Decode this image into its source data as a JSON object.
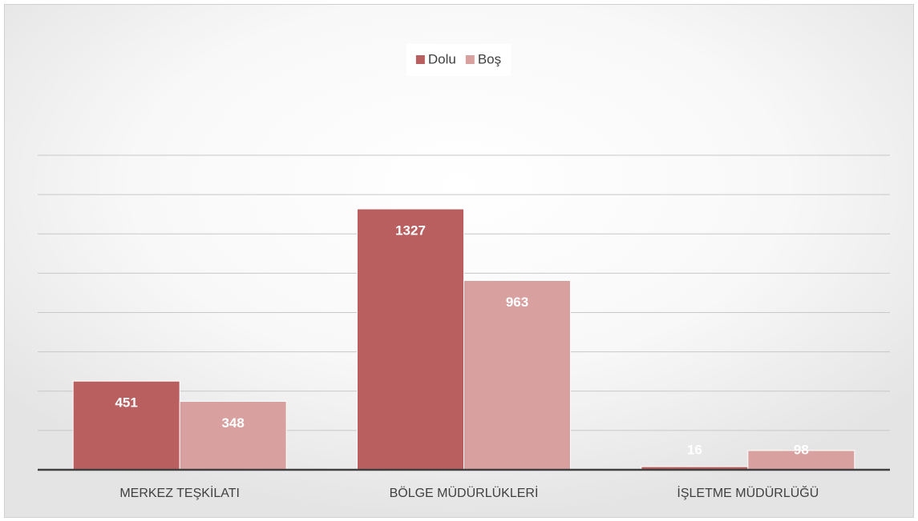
{
  "chart_data": {
    "type": "bar",
    "categories": [
      "MERKEZ TEŞKİLATI",
      "BÖLGE MÜDÜRLÜKLERİ",
      "İŞLETME MÜDÜRLÜĞÜ"
    ],
    "series": [
      {
        "name": "Dolu",
        "color": "#b95f5f",
        "values": [
          451,
          1327,
          16
        ]
      },
      {
        "name": "Boş",
        "color": "#d9a0a0",
        "values": [
          348,
          963,
          98
        ]
      }
    ],
    "ylim": [
      0,
      1600
    ],
    "yticks": [
      0,
      200,
      400,
      600,
      800,
      1000,
      1200,
      1400,
      1600
    ],
    "grid": true,
    "legend": "top"
  }
}
